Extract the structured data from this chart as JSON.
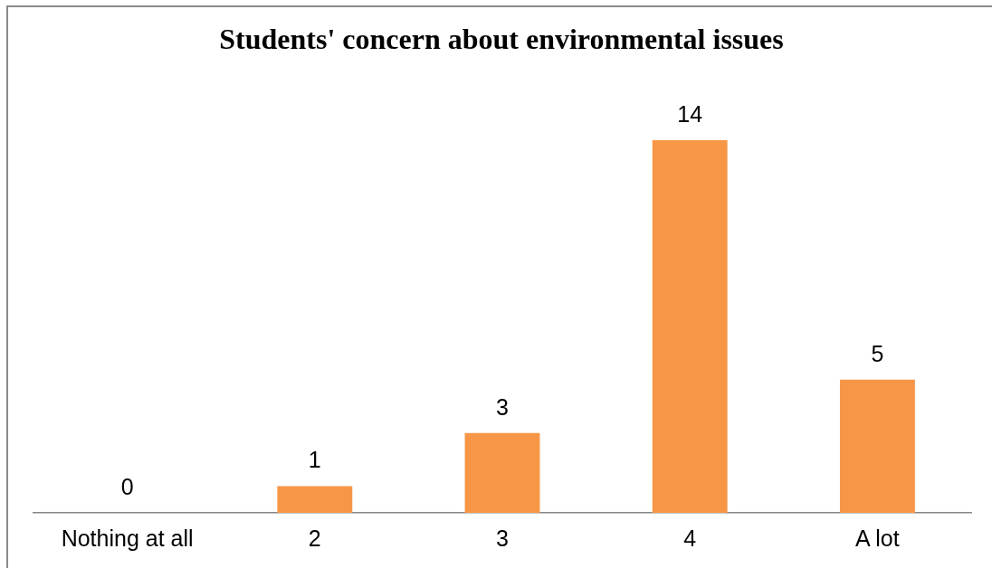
{
  "chart_data": {
    "type": "bar",
    "title": "Students' concern about environmental issues",
    "categories": [
      "Nothing at all",
      "2",
      "3",
      "4",
      "A lot"
    ],
    "values": [
      0,
      1,
      3,
      14,
      5
    ],
    "color": "#f79646",
    "data_labels": true,
    "tick_labels": "x"
  }
}
